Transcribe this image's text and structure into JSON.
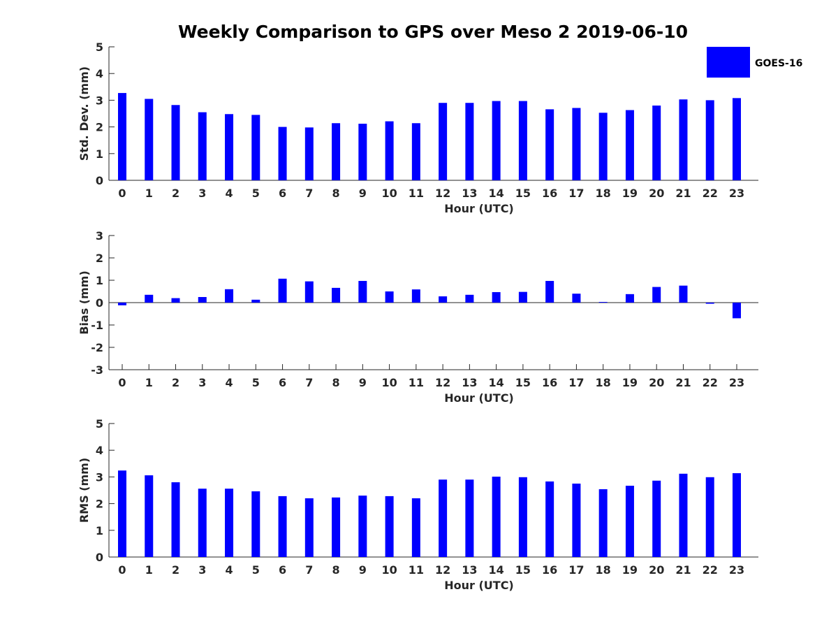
{
  "title": "Weekly Comparison to GPS over Meso 2 2019-06-10",
  "colors": {
    "bar": "#0000ff",
    "axis": "#262626"
  },
  "chart_data": [
    {
      "type": "bar",
      "name": "stddev",
      "categories": [
        "0",
        "1",
        "2",
        "3",
        "4",
        "5",
        "6",
        "7",
        "8",
        "9",
        "10",
        "11",
        "12",
        "13",
        "14",
        "15",
        "16",
        "17",
        "18",
        "19",
        "20",
        "21",
        "22",
        "23"
      ],
      "series": [
        {
          "name": "GOES-16",
          "values": [
            3.27,
            3.05,
            2.82,
            2.55,
            2.48,
            2.45,
            2.0,
            1.98,
            2.14,
            2.12,
            2.21,
            2.14,
            2.9,
            2.9,
            2.97,
            2.97,
            2.66,
            2.71,
            2.53,
            2.63,
            2.8,
            3.03,
            3.0,
            3.08
          ]
        }
      ],
      "xlabel": "Hour (UTC)",
      "ylabel": "Std. Dev. (mm)",
      "ylim": [
        0,
        5
      ],
      "yticks": [
        "0",
        "1",
        "2",
        "3",
        "4",
        "5"
      ],
      "legend": {
        "label": "GOES-16",
        "position": "top-right"
      }
    },
    {
      "type": "bar",
      "name": "bias",
      "categories": [
        "0",
        "1",
        "2",
        "3",
        "4",
        "5",
        "6",
        "7",
        "8",
        "9",
        "10",
        "11",
        "12",
        "13",
        "14",
        "15",
        "16",
        "17",
        "18",
        "19",
        "20",
        "21",
        "22",
        "23"
      ],
      "series": [
        {
          "name": "GOES-16",
          "values": [
            -0.12,
            0.35,
            0.2,
            0.25,
            0.6,
            0.13,
            1.07,
            0.95,
            0.66,
            0.97,
            0.5,
            0.59,
            0.28,
            0.35,
            0.47,
            0.48,
            0.97,
            0.4,
            0.03,
            0.38,
            0.7,
            0.76,
            -0.05,
            -0.7
          ]
        }
      ],
      "xlabel": "Hour (UTC)",
      "ylabel": "Bias (mm)",
      "ylim": [
        -3,
        3
      ],
      "yticks": [
        "-3",
        "-2",
        "-1",
        "0",
        "1",
        "2",
        "3"
      ]
    },
    {
      "type": "bar",
      "name": "rms",
      "categories": [
        "0",
        "1",
        "2",
        "3",
        "4",
        "5",
        "6",
        "7",
        "8",
        "9",
        "10",
        "11",
        "12",
        "13",
        "14",
        "15",
        "16",
        "17",
        "18",
        "19",
        "20",
        "21",
        "22",
        "23"
      ],
      "series": [
        {
          "name": "GOES-16",
          "values": [
            3.24,
            3.06,
            2.8,
            2.56,
            2.56,
            2.46,
            2.28,
            2.2,
            2.23,
            2.3,
            2.28,
            2.2,
            2.9,
            2.9,
            3.01,
            2.99,
            2.83,
            2.75,
            2.54,
            2.67,
            2.86,
            3.12,
            2.99,
            3.14
          ]
        }
      ],
      "xlabel": "Hour (UTC)",
      "ylabel": "RMS (mm)",
      "ylim": [
        0,
        5
      ],
      "yticks": [
        "0",
        "1",
        "2",
        "3",
        "4",
        "5"
      ]
    }
  ]
}
